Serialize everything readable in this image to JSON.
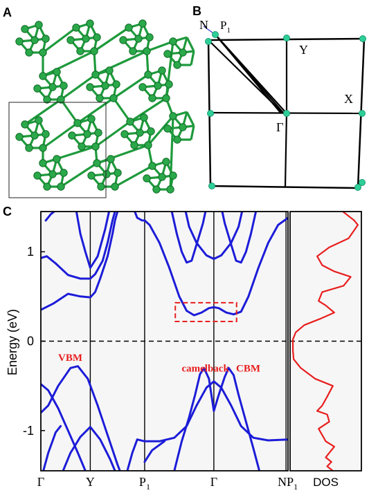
{
  "panels": {
    "a": {
      "label": "A"
    },
    "b": {
      "label": "B"
    },
    "c": {
      "label": "C"
    }
  },
  "brillouin_zone": {
    "points": [
      {
        "label": "N"
      },
      {
        "label": "P",
        "sub": "1"
      },
      {
        "label": "Y"
      },
      {
        "label": "X"
      },
      {
        "label": "Γ"
      }
    ],
    "colors": {
      "frame": "#000000",
      "vertex": "#2dcf98",
      "n_line": "#3b3bd6"
    }
  },
  "chart_data": [
    {
      "type": "line",
      "title": "",
      "ylabel": "Energy (eV)",
      "ylim": [
        -1.45,
        1.45
      ],
      "yticks": [
        -1,
        0,
        1
      ],
      "kpath": [
        {
          "label": "Γ",
          "sub": "",
          "x": 0
        },
        {
          "label": "Y",
          "sub": "",
          "x": 1
        },
        {
          "label": "P",
          "sub": "1",
          "x": 2.1
        },
        {
          "label": "Γ",
          "sub": "",
          "x": 3.5
        },
        {
          "label": "N",
          "sub": "",
          "x": 4.96
        },
        {
          "label": "P",
          "sub": "1",
          "x": 5.0
        }
      ],
      "xlim": [
        0,
        5.0
      ],
      "fermi_level": 0,
      "band_color": "#1c1cd8",
      "annotations": [
        {
          "text": "VBM",
          "x": 0.35,
          "y": -0.22,
          "color": "#e81e1e"
        },
        {
          "text": "camelback",
          "x": 2.85,
          "y": -0.34,
          "color": "#e81e1e"
        },
        {
          "text": "CBM",
          "x": 3.95,
          "y": -0.34,
          "color": "#e81e1e"
        }
      ],
      "highlight_box": {
        "x": [
          2.72,
          3.96
        ],
        "y": [
          0.22,
          0.43
        ],
        "color": "#e81e1e"
      },
      "series": [
        {
          "points": [
            [
              0,
              0.35
            ],
            [
              0.25,
              0.42
            ],
            [
              0.55,
              0.53
            ],
            [
              0.8,
              0.5
            ],
            [
              1.0,
              0.49
            ],
            [
              1.1,
              0.55
            ],
            [
              1.2,
              0.7
            ],
            [
              1.35,
              0.95
            ],
            [
              1.45,
              1.2
            ],
            [
              1.5,
              1.35
            ],
            [
              1.55,
              1.45
            ]
          ]
        },
        {
          "points": [
            [
              0,
              0.93
            ],
            [
              0.12,
              0.95
            ],
            [
              0.3,
              0.87
            ],
            [
              0.55,
              0.74
            ],
            [
              0.8,
              0.7
            ],
            [
              1.0,
              0.7
            ],
            [
              1.1,
              0.75
            ],
            [
              1.25,
              0.9
            ],
            [
              1.35,
              1.1
            ],
            [
              1.45,
              1.35
            ],
            [
              1.5,
              1.45
            ]
          ]
        },
        {
          "points": [
            [
              0.1,
              1.35
            ],
            [
              0.2,
              1.42
            ],
            [
              0.27,
              1.45
            ]
          ]
        },
        {
          "points": [
            [
              0.72,
              1.45
            ],
            [
              0.8,
              1.2
            ],
            [
              0.9,
              1.0
            ],
            [
              1.0,
              0.82
            ],
            [
              1.15,
              0.95
            ],
            [
              1.3,
              1.25
            ],
            [
              1.38,
              1.45
            ]
          ]
        },
        {
          "points": [
            [
              1.9,
              1.45
            ],
            [
              1.95,
              1.38
            ],
            [
              2.05,
              1.35
            ],
            [
              2.1,
              1.35
            ]
          ]
        },
        {
          "points": [
            [
              0,
              -0.48
            ],
            [
              0.15,
              -0.55
            ],
            [
              0.35,
              -0.75
            ],
            [
              0.55,
              -1.0
            ],
            [
              0.75,
              -1.25
            ],
            [
              0.9,
              -1.45
            ]
          ]
        },
        {
          "points": [
            [
              0,
              -0.8
            ],
            [
              0.15,
              -0.72
            ],
            [
              0.35,
              -0.5
            ],
            [
              0.6,
              -0.3
            ],
            [
              0.75,
              -0.28
            ],
            [
              0.95,
              -0.42
            ],
            [
              1.15,
              -0.72
            ],
            [
              1.35,
              -1.05
            ],
            [
              1.55,
              -1.38
            ],
            [
              1.6,
              -1.45
            ]
          ]
        },
        {
          "points": [
            [
              0.45,
              -1.45
            ],
            [
              0.6,
              -1.25
            ],
            [
              0.8,
              -1.07
            ],
            [
              1.0,
              -0.96
            ],
            [
              1.2,
              -1.1
            ],
            [
              1.4,
              -1.32
            ],
            [
              1.5,
              -1.45
            ]
          ]
        },
        {
          "points": [
            [
              0.05,
              -1.45
            ],
            [
              0.15,
              -1.25
            ],
            [
              0.3,
              -1.02
            ],
            [
              0.4,
              -0.95
            ]
          ]
        },
        {
          "points": [
            [
              2.1,
              1.35
            ],
            [
              2.2,
              1.3
            ],
            [
              2.4,
              1.1
            ],
            [
              2.6,
              0.82
            ],
            [
              2.8,
              0.5
            ],
            [
              2.95,
              0.34
            ],
            [
              3.1,
              0.29
            ],
            [
              3.25,
              0.32
            ],
            [
              3.4,
              0.37
            ],
            [
              3.5,
              0.38
            ],
            [
              3.6,
              0.37
            ],
            [
              3.75,
              0.32
            ],
            [
              3.9,
              0.3
            ],
            [
              4.05,
              0.33
            ],
            [
              4.2,
              0.5
            ],
            [
              4.4,
              0.82
            ],
            [
              4.6,
              1.1
            ],
            [
              4.8,
              1.3
            ],
            [
              5.0,
              1.38
            ]
          ]
        },
        {
          "points": [
            [
              2.93,
              1.45
            ],
            [
              3.0,
              1.28
            ],
            [
              3.15,
              1.1
            ],
            [
              3.35,
              0.96
            ],
            [
              3.5,
              0.92
            ],
            [
              3.65,
              0.96
            ],
            [
              3.85,
              1.1
            ],
            [
              4.0,
              1.28
            ],
            [
              4.07,
              1.45
            ]
          ]
        },
        {
          "points": [
            [
              2.65,
              1.45
            ],
            [
              2.75,
              1.2
            ],
            [
              2.85,
              1.0
            ],
            [
              2.95,
              0.88
            ],
            [
              3.05,
              0.9
            ],
            [
              3.15,
              1.08
            ],
            [
              3.28,
              1.32
            ],
            [
              3.33,
              1.45
            ]
          ]
        },
        {
          "points": [
            [
              3.67,
              1.45
            ],
            [
              3.72,
              1.32
            ],
            [
              3.85,
              1.08
            ],
            [
              3.95,
              0.9
            ],
            [
              4.05,
              0.88
            ],
            [
              4.15,
              1.0
            ],
            [
              4.25,
              1.2
            ],
            [
              4.35,
              1.45
            ]
          ]
        },
        {
          "points": [
            [
              2.1,
              -1.12
            ],
            [
              2.4,
              -1.12
            ],
            [
              2.7,
              -1.08
            ],
            [
              2.95,
              -0.95
            ],
            [
              3.15,
              -0.72
            ],
            [
              3.35,
              -0.52
            ],
            [
              3.5,
              -0.45
            ],
            [
              3.65,
              -0.52
            ],
            [
              3.85,
              -0.72
            ],
            [
              4.05,
              -0.95
            ],
            [
              4.3,
              -1.08
            ],
            [
              4.6,
              -1.11
            ],
            [
              5.0,
              -1.1
            ]
          ]
        },
        {
          "points": [
            [
              2.7,
              -1.45
            ],
            [
              2.85,
              -1.12
            ],
            [
              3.0,
              -0.85
            ],
            [
              3.12,
              -0.6
            ],
            [
              3.22,
              -0.37
            ],
            [
              3.3,
              -0.3
            ],
            [
              3.4,
              -0.42
            ],
            [
              3.5,
              -0.78
            ],
            [
              3.6,
              -0.6
            ],
            [
              3.72,
              -0.4
            ],
            [
              3.8,
              -0.3
            ],
            [
              3.9,
              -0.38
            ],
            [
              4.0,
              -0.6
            ],
            [
              4.15,
              -0.9
            ],
            [
              4.3,
              -1.2
            ],
            [
              4.42,
              -1.45
            ]
          ]
        },
        {
          "points": [
            [
              2.1,
              -1.35
            ],
            [
              2.25,
              -1.22
            ],
            [
              2.5,
              -1.12
            ]
          ]
        },
        {
          "points": [
            [
              1.75,
              -1.45
            ],
            [
              1.85,
              -1.25
            ],
            [
              1.95,
              -1.1
            ],
            [
              2.1,
              -1.12
            ]
          ]
        }
      ]
    },
    {
      "type": "line",
      "title": "",
      "xlabel": "DOS",
      "ylim": [
        -1.45,
        1.45
      ],
      "line_color": "#e81e1e",
      "series": [
        {
          "points": [
            [
              0.74,
              1.45
            ],
            [
              0.9,
              1.35
            ],
            [
              0.95,
              1.3
            ],
            [
              0.82,
              1.15
            ],
            [
              0.55,
              1.05
            ],
            [
              0.38,
              0.95
            ],
            [
              0.45,
              0.85
            ],
            [
              0.62,
              0.78
            ],
            [
              0.85,
              0.72
            ],
            [
              0.75,
              0.62
            ],
            [
              0.45,
              0.55
            ],
            [
              0.4,
              0.45
            ],
            [
              0.5,
              0.4
            ],
            [
              0.62,
              0.32
            ],
            [
              0.42,
              0.25
            ],
            [
              0.2,
              0.18
            ],
            [
              0.08,
              0.1
            ],
            [
              0.04,
              0.02
            ],
            [
              0.04,
              -0.1
            ],
            [
              0.05,
              -0.2
            ],
            [
              0.15,
              -0.3
            ],
            [
              0.35,
              -0.42
            ],
            [
              0.6,
              -0.5
            ],
            [
              0.52,
              -0.62
            ],
            [
              0.45,
              -0.72
            ],
            [
              0.38,
              -0.78
            ],
            [
              0.52,
              -0.82
            ],
            [
              0.55,
              -0.9
            ],
            [
              0.4,
              -0.98
            ],
            [
              0.45,
              -1.05
            ],
            [
              0.5,
              -1.12
            ],
            [
              0.62,
              -1.18
            ],
            [
              0.55,
              -1.25
            ],
            [
              0.5,
              -1.3
            ],
            [
              0.58,
              -1.35
            ],
            [
              0.52,
              -1.4
            ],
            [
              0.6,
              -1.45
            ]
          ]
        }
      ]
    }
  ]
}
